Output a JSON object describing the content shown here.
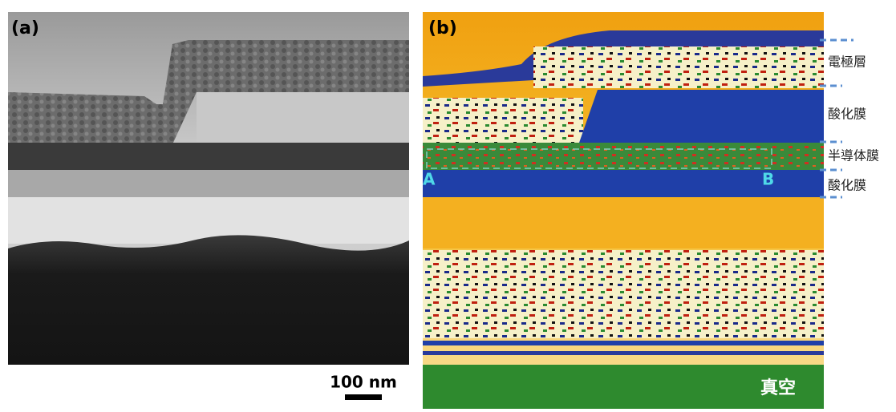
{
  "panels": [
    {
      "label": "(a)",
      "scale_bar": "100 nm"
    },
    {
      "label": "(b)",
      "points": [
        "A",
        "B"
      ],
      "region": "真空"
    }
  ],
  "layer_labels": [
    "電極層",
    "酸化膜",
    "半導体膜",
    "酸化膜"
  ]
}
